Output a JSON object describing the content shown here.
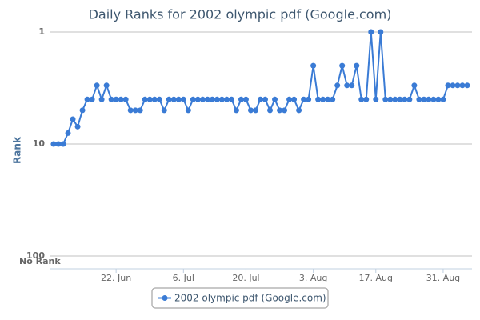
{
  "chart_data": {
    "type": "line",
    "title": "Daily Ranks for 2002 olympic pdf (Google.com)",
    "y_label": "Rank",
    "annotation": "No Rank",
    "x": [
      0,
      1,
      2,
      3,
      4,
      5,
      6,
      7,
      8,
      9,
      10,
      11,
      12,
      13,
      14,
      15,
      16,
      17,
      18,
      19,
      20,
      21,
      22,
      23,
      24,
      25,
      26,
      27,
      28,
      29,
      30,
      31,
      32,
      33,
      34,
      35,
      36,
      37,
      38,
      39,
      40,
      41,
      42,
      43,
      44,
      45,
      46,
      47,
      48,
      49,
      50,
      51,
      52,
      53,
      54,
      55,
      56,
      57,
      58,
      59,
      60,
      61,
      62,
      63,
      64,
      65,
      66,
      67,
      68,
      69,
      70,
      71,
      72,
      73,
      74,
      75,
      76,
      77,
      78,
      79,
      80,
      81,
      82,
      83,
      84,
      85,
      86
    ],
    "xlim": [
      0,
      86
    ],
    "xticks": [
      {
        "value": 13,
        "label": "22. Jun"
      },
      {
        "value": 27,
        "label": "6. Jul"
      },
      {
        "value": 40,
        "label": "20. Jul"
      },
      {
        "value": 54,
        "label": "3. Aug"
      },
      {
        "value": 67,
        "label": "17. Aug"
      },
      {
        "value": 81,
        "label": "31. Aug"
      }
    ],
    "ylim": [
      1,
      100
    ],
    "yticks": [
      1,
      10,
      100
    ],
    "log_y": true,
    "reversed_y": true,
    "grid": true,
    "series": [
      {
        "name": "2002 olympic pdf (Google.com)",
        "color": "#3a7bd5",
        "values": [
          10,
          10,
          10,
          8,
          6,
          7,
          5,
          4,
          4,
          3,
          4,
          3,
          4,
          4,
          4,
          4,
          5,
          5,
          5,
          4,
          4,
          4,
          4,
          5,
          4,
          4,
          4,
          4,
          5,
          4,
          4,
          4,
          4,
          4,
          4,
          4,
          4,
          4,
          5,
          4,
          4,
          5,
          5,
          4,
          4,
          5,
          4,
          5,
          5,
          4,
          4,
          5,
          4,
          4,
          2,
          4,
          4,
          4,
          4,
          3,
          2,
          3,
          3,
          2,
          4,
          4,
          1,
          4,
          1,
          4,
          4,
          4,
          4,
          4,
          4,
          3,
          4,
          4,
          4,
          4,
          4,
          4,
          3,
          3,
          3,
          3,
          3
        ]
      }
    ],
    "legend": "bottom"
  }
}
